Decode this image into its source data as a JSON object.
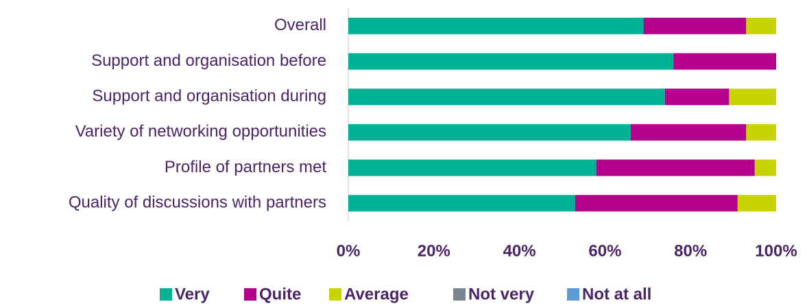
{
  "chart_data": {
    "type": "bar",
    "orientation": "horizontal",
    "stacked": true,
    "categories": [
      "Overall",
      "Support and organisation before",
      "Support and organisation during",
      "Variety of networking opportunities",
      "Profile of partners met",
      "Quality of discussions with partners"
    ],
    "series": [
      {
        "name": "Very",
        "color": "#00b294",
        "values": [
          69,
          76,
          74,
          66,
          58,
          53
        ]
      },
      {
        "name": "Quite",
        "color": "#b4008c",
        "values": [
          24,
          24,
          15,
          27,
          37,
          38
        ]
      },
      {
        "name": "Average",
        "color": "#c8d400",
        "values": [
          7,
          0,
          11,
          7,
          5,
          9
        ]
      },
      {
        "name": "Not very",
        "color": "#7a8590",
        "values": [
          0,
          0,
          0,
          0,
          0,
          0
        ]
      },
      {
        "name": "Not at all",
        "color": "#5b9bd5",
        "values": [
          0,
          0,
          0,
          0,
          0,
          0
        ]
      }
    ],
    "xlim": [
      0,
      100
    ],
    "xticks": [
      {
        "value": 0,
        "label": "0%"
      },
      {
        "value": 20,
        "label": "20%"
      },
      {
        "value": 40,
        "label": "40%"
      },
      {
        "value": 60,
        "label": "60%"
      },
      {
        "value": 80,
        "label": "80%"
      },
      {
        "value": 100,
        "label": "100%"
      }
    ],
    "legend": "bottom"
  }
}
